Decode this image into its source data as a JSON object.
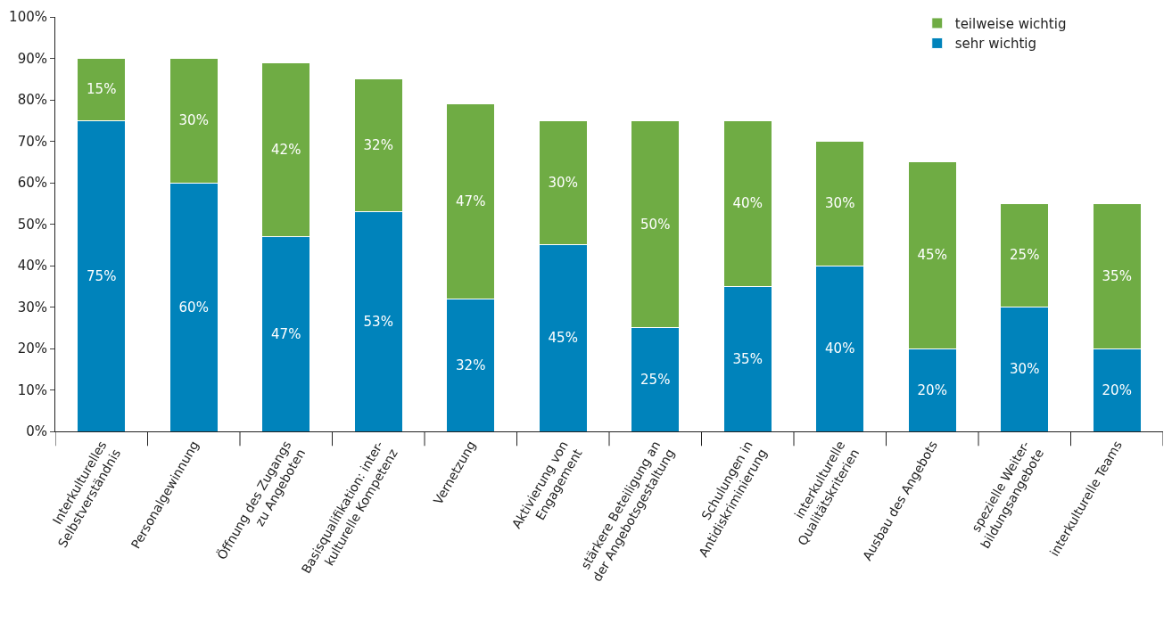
{
  "chart_data": {
    "type": "bar",
    "stacked": true,
    "categories": [
      "Interkulturelles\nSelbstverständnis",
      "Personalgewinnung",
      "Öffnung des Zugangs\nzu Angeboten",
      "Basisqualifikation: inter-\nkulturelle Kompetenz",
      "Vernetzung",
      "Aktivierung von\nEngagement",
      "stärkere Beteiligung an\nder Angebotsgestaltung",
      "Schulungen in\nAntidiskriminierung",
      "interkulturelle\nQualitätskriterien",
      "Ausbau des Angebots",
      "spezielle Weiter-\nbildungsangebote",
      "interkulturelle Teams"
    ],
    "series": [
      {
        "name": "sehr wichtig",
        "color": "#0083bb",
        "values": [
          75,
          60,
          47,
          53,
          32,
          45,
          25,
          35,
          40,
          20,
          30,
          20
        ],
        "value_labels": [
          "75%",
          "60%",
          "47%",
          "53%",
          "32%",
          "45%",
          "25%",
          "35%",
          "40%",
          "20%",
          "30%",
          "20%"
        ]
      },
      {
        "name": "teilweise wichtig",
        "color": "#6fac44",
        "values": [
          15,
          30,
          42,
          32,
          47,
          30,
          50,
          40,
          30,
          45,
          25,
          35
        ],
        "value_labels": [
          "15%",
          "30%",
          "42%",
          "32%",
          "47%",
          "30%",
          "50%",
          "40%",
          "30%",
          "45%",
          "25%",
          "35%"
        ]
      }
    ],
    "ylim": [
      0,
      100
    ],
    "yticks": [
      {
        "value": 0,
        "label": "0%"
      },
      {
        "value": 10,
        "label": "10%"
      },
      {
        "value": 20,
        "label": "20%"
      },
      {
        "value": 30,
        "label": "30%"
      },
      {
        "value": 40,
        "label": "40%"
      },
      {
        "value": 50,
        "label": "50%"
      },
      {
        "value": 60,
        "label": "60%"
      },
      {
        "value": 70,
        "label": "70%"
      },
      {
        "value": 80,
        "label": "80%"
      },
      {
        "value": 90,
        "label": "90%"
      },
      {
        "value": 100,
        "label": "100%"
      }
    ],
    "legend": "top right"
  }
}
